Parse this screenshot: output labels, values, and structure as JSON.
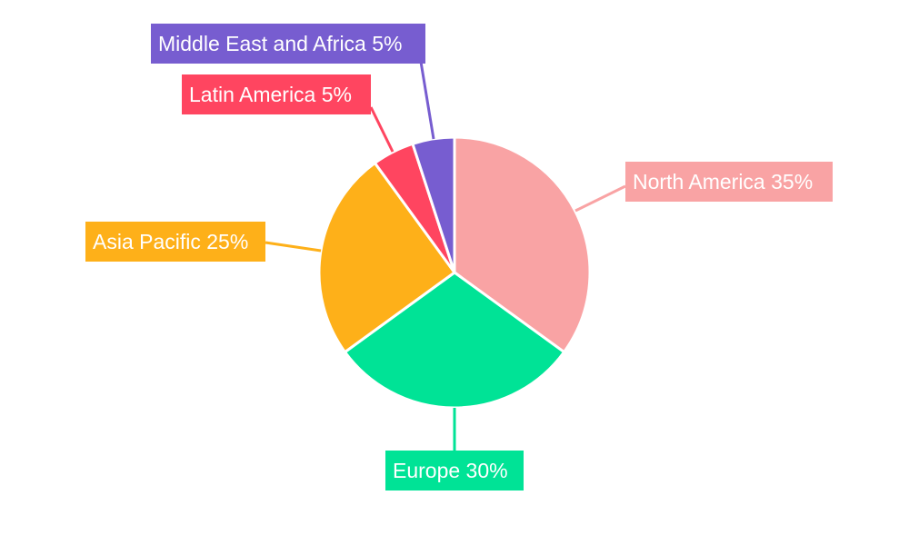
{
  "chart_data": {
    "type": "pie",
    "categories": [
      "North America",
      "Europe",
      "Asia Pacific",
      "Latin America",
      "Middle East and Africa"
    ],
    "values": [
      35,
      30,
      25,
      5,
      5
    ],
    "labels": [
      "North America 35%",
      "Europe 30%",
      "Asia Pacific 25%",
      "Latin America 5%",
      "Middle East and Africa 5%"
    ],
    "colors": [
      "#f9a3a4",
      "#00e396",
      "#feb019",
      "#ff4560",
      "#775dd0"
    ],
    "start_angle": "top, clockwise",
    "legend": "none"
  }
}
